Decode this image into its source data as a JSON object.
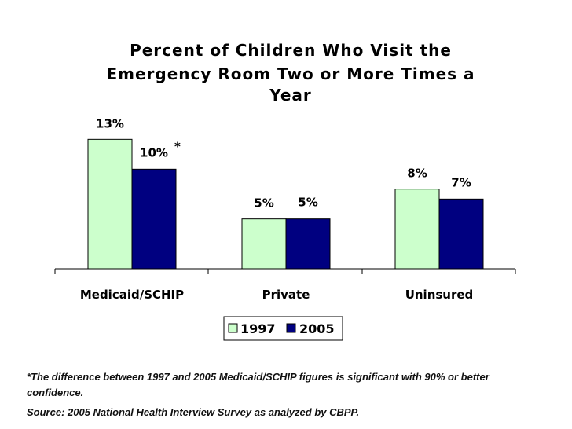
{
  "chart_data": {
    "type": "bar",
    "title_lines": [
      "Percent of Children Who Visit the",
      "Emergency Room Two or More Times a",
      "Year"
    ],
    "categories": [
      "Medicaid/SCHIP",
      "Private",
      "Uninsured"
    ],
    "series": [
      {
        "name": "1997",
        "values": [
          13,
          5,
          8
        ],
        "labels": [
          "13%",
          "5%",
          "8%"
        ],
        "color": "#ccffcc"
      },
      {
        "name": "2005",
        "values": [
          10,
          5,
          7
        ],
        "labels": [
          "10%",
          "5%",
          "7%"
        ],
        "color": "#000080"
      }
    ],
    "annotations": [
      {
        "series": 1,
        "category": 0,
        "text": "*"
      }
    ],
    "ylim": [
      0,
      18
    ],
    "grid": false,
    "legend": "bottom"
  },
  "footnote": "*The difference between 1997 and 2005 Medicaid/SCHIP figures is significant with 90% or better confidence.",
  "source": "Source: 2005 National Health Interview Survey as analyzed by CBPP."
}
